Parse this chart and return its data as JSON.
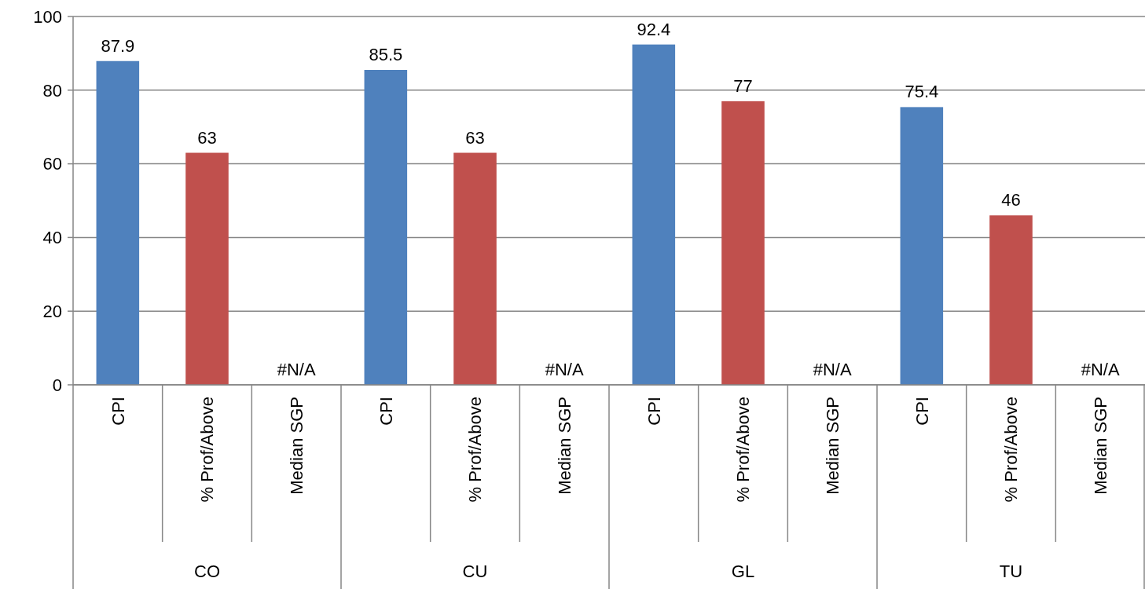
{
  "chart_data": {
    "type": "bar",
    "categories": [
      "CPI",
      "% Prof/Above",
      "Median SGP",
      "CPI",
      "% Prof/Above",
      "Median SGP",
      "CPI",
      "% Prof/Above",
      "Median SGP",
      "CPI",
      "% Prof/Above",
      "Median SGP"
    ],
    "values": [
      87.9,
      63,
      null,
      85.5,
      63,
      null,
      92.4,
      77,
      null,
      75.4,
      46,
      null
    ],
    "value_labels": [
      "87.9",
      "63",
      "#N/A",
      "85.5",
      "63",
      "#N/A",
      "92.4",
      "77",
      "#N/A",
      "75.4",
      "46",
      "#N/A"
    ],
    "colors": [
      "#4f81bd",
      "#c0504d",
      null,
      "#4f81bd",
      "#c0504d",
      null,
      "#4f81bd",
      "#c0504d",
      null,
      "#4f81bd",
      "#c0504d",
      null
    ],
    "annotations": [
      "CO",
      "CU",
      "GL",
      "TU"
    ],
    "ylim": [
      0,
      100
    ],
    "yticks": [
      0,
      20,
      40,
      60,
      80,
      100
    ],
    "grid": "y"
  }
}
